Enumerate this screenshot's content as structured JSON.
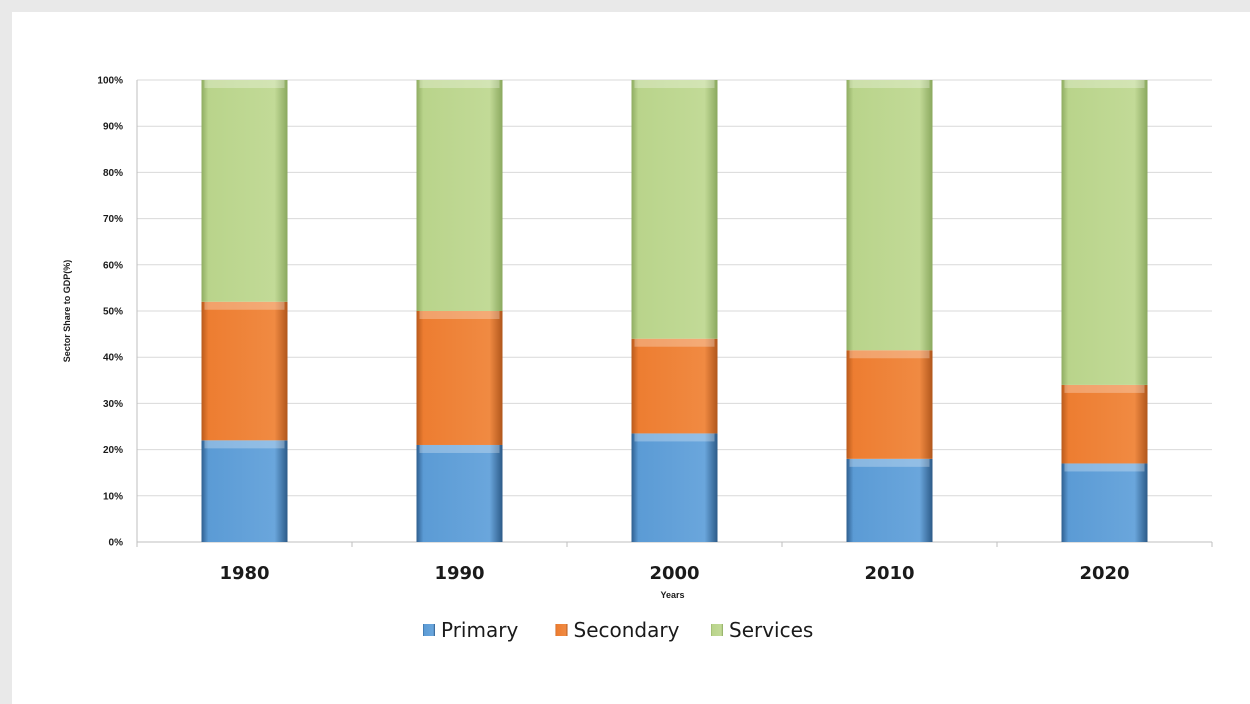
{
  "chart_data": {
    "type": "bar",
    "stacked": true,
    "categories": [
      "1980",
      "1990",
      "2000",
      "2010",
      "2020"
    ],
    "series": [
      {
        "name": "Primary",
        "values": [
          22,
          21,
          23.5,
          18,
          17
        ],
        "color": "#5b9bd5"
      },
      {
        "name": "Secondary",
        "values": [
          30,
          29,
          20.5,
          23.5,
          17
        ],
        "color": "#ed7d31"
      },
      {
        "name": "Services",
        "values": [
          48,
          50,
          56,
          58.5,
          66
        ],
        "color": "#b9d48b"
      }
    ],
    "yticks": [
      "0%",
      "10%",
      "20%",
      "30%",
      "40%",
      "50%",
      "60%",
      "70%",
      "80%",
      "90%",
      "100%"
    ],
    "ylim": [
      0,
      100
    ],
    "xlabel": "Years",
    "ylabel": "Sector Share to GDP(%)",
    "grid": true,
    "legend_position": "bottom"
  }
}
